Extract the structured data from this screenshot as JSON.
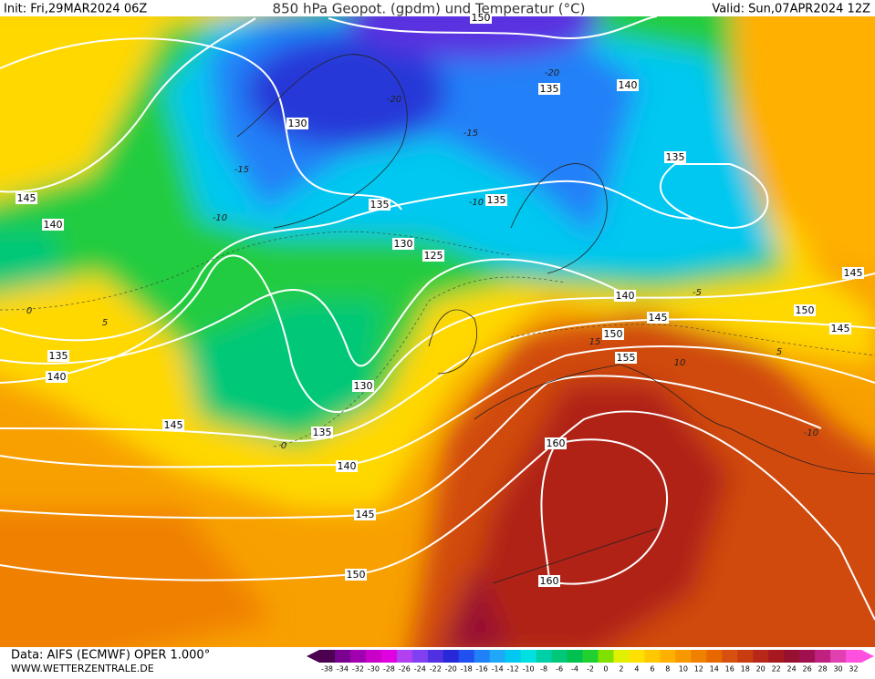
{
  "header": {
    "init": "Init: Fri,29MAR2024 06Z",
    "title": "850 hPa Geopot. (gpdm) und Temperatur (°C)",
    "valid": "Valid: Sun,07APR2024 12Z"
  },
  "contour_labels": {
    "geopotential": [
      150,
      130,
      135,
      140,
      135,
      145,
      140,
      135,
      135,
      130,
      125,
      140,
      145,
      145,
      150,
      145,
      150,
      155,
      135,
      140,
      130,
      145,
      135,
      160,
      140,
      145,
      150,
      160
    ],
    "temperature": [
      -20,
      -15,
      -10,
      -20,
      -15,
      -10,
      0,
      5,
      0,
      -5,
      5,
      -10,
      15,
      10
    ]
  },
  "colorbar": {
    "ticks": [
      -38,
      -34,
      -32,
      -30,
      -28,
      -26,
      -24,
      -22,
      -20,
      -18,
      -16,
      -14,
      -12,
      -10,
      -8,
      -6,
      -4,
      -2,
      0,
      2,
      4,
      6,
      8,
      10,
      12,
      14,
      16,
      18,
      20,
      22,
      24,
      26,
      28,
      30,
      32
    ],
    "colors": [
      "#4b0050",
      "#7a0090",
      "#a000b0",
      "#c800c8",
      "#e000e0",
      "#b040f0",
      "#8040f0",
      "#5030e0",
      "#2828d8",
      "#2050f0",
      "#2080f8",
      "#20a8f8",
      "#00c8f0",
      "#00e0e0",
      "#00d0a8",
      "#00c878",
      "#00c050",
      "#20d030",
      "#80e000",
      "#e0f000",
      "#ffe000",
      "#ffc800",
      "#ffb000",
      "#f89800",
      "#f08000",
      "#e86800",
      "#d85010",
      "#c83c10",
      "#b82818",
      "#a81820",
      "#981030",
      "#a01050",
      "#c02080",
      "#e040b0",
      "#ff50e0"
    ]
  },
  "footer": {
    "data": "Data: AIFS (ECMWF) OPER 1.000°",
    "website": "WWW.WETTERZENTRALE.DE"
  }
}
